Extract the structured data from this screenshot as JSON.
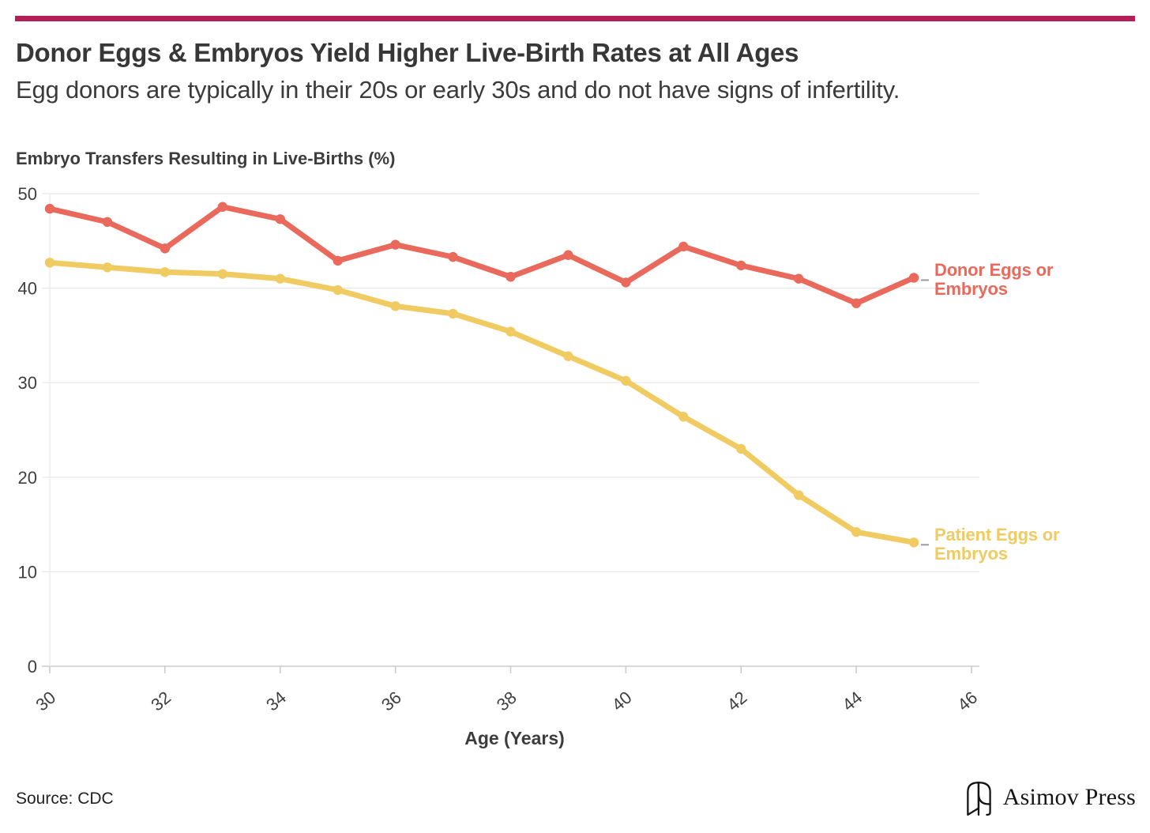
{
  "header": {
    "title": "Donor Eggs & Embryos Yield Higher Live-Birth Rates at All Ages",
    "subtitle": "Egg donors are typically in their 20s or early 30s and do not have signs of infertility.",
    "accent_bar_color": "#b51f58"
  },
  "chart_data": {
    "type": "line",
    "title": "Embryo Transfers Resulting in Live-Births (%)",
    "xlabel": "Age (Years)",
    "ylabel": "Embryo Transfers Resulting in Live-Births (%)",
    "x": [
      30,
      31,
      32,
      33,
      34,
      35,
      36,
      37,
      38,
      39,
      40,
      41,
      42,
      43,
      44,
      45
    ],
    "series": [
      {
        "name": "Donor Eggs or Embryos",
        "color": "#e96a5c",
        "values": [
          48.4,
          47.0,
          44.2,
          48.6,
          47.3,
          42.9,
          44.6,
          43.3,
          41.2,
          43.5,
          40.6,
          44.4,
          42.4,
          41.0,
          38.4,
          41.1
        ]
      },
      {
        "name": "Patient Eggs or Embryos",
        "color": "#f0cb62",
        "values": [
          42.7,
          42.2,
          41.7,
          41.5,
          41.0,
          39.8,
          38.1,
          37.3,
          35.4,
          32.8,
          30.2,
          26.4,
          23.0,
          18.1,
          14.2,
          13.1
        ]
      }
    ],
    "xlim": [
      30,
      46
    ],
    "ylim": [
      0,
      50
    ],
    "xticks": [
      30,
      32,
      34,
      36,
      38,
      40,
      42,
      44,
      46
    ],
    "yticks": [
      0,
      10,
      20,
      30,
      40,
      50
    ],
    "grid": "horizontal",
    "legend_position": "right-of-line-end"
  },
  "legend": {
    "donor": {
      "line1": "Donor Eggs or",
      "line2": "Embryos"
    },
    "patient": {
      "line1": "Patient Eggs or",
      "line2": "Embryos"
    }
  },
  "axis": {
    "x_title": "Age (Years)"
  },
  "footer": {
    "source": "Source: CDC",
    "brand": "Asimov Press"
  },
  "colors": {
    "grid": "#e8e8e8",
    "axis_line": "#cccccc",
    "tick": "#c9c9c9",
    "tick_label": "#3f3f3f",
    "legend_dash": "#9a9a9a"
  }
}
